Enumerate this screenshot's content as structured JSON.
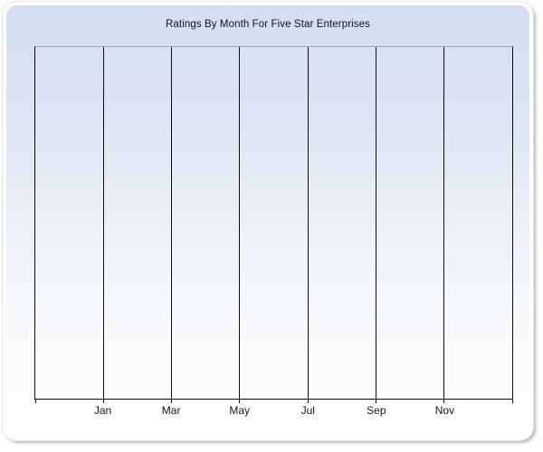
{
  "window": {
    "title": "Ratings By Month For Five Star Enterprises"
  },
  "chart_data": {
    "type": "line",
    "title": "Ratings By Month For Five Star Enterprises",
    "xlabel": "",
    "ylabel": "",
    "x_tick_labels": [
      "Jan",
      "Mar",
      "May",
      "Jul",
      "Sep",
      "Nov"
    ],
    "x_gridline_intervals": 7,
    "series": [],
    "grid": "vertical-only",
    "legend": "none",
    "y_tick_labels": []
  },
  "colors": {
    "panel_gradient_top": "#d3dff0",
    "panel_gradient_bottom": "#fdfefe",
    "axis_line": "#0a0a0a",
    "gridline": "#101010",
    "plot_top_border": "#97a2b4",
    "title_text": "#10121c",
    "tick_label_text": "#17171f",
    "window_rim": "#ffffff",
    "drop_shadow": "#828282"
  }
}
